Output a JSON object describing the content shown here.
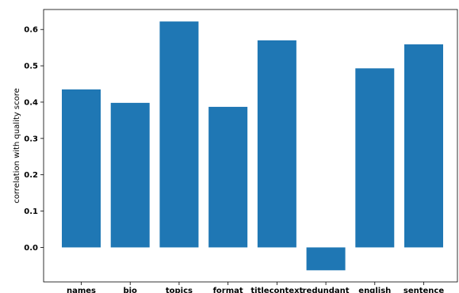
{
  "chart_data": {
    "type": "bar",
    "categories": [
      "names",
      "bio",
      "topics",
      "format",
      "titlecontext",
      "redundant",
      "english",
      "sentence"
    ],
    "values": [
      0.435,
      0.398,
      0.622,
      0.387,
      0.57,
      -0.063,
      0.493,
      0.559
    ],
    "title": "",
    "xlabel": "",
    "ylabel": "correlation with quality score",
    "ylim": [
      -0.095,
      0.655
    ],
    "yticks": [
      0.0,
      0.1,
      0.2,
      0.3,
      0.4,
      0.5,
      0.6
    ],
    "grid": false,
    "bar_color": "#1f77b4"
  }
}
